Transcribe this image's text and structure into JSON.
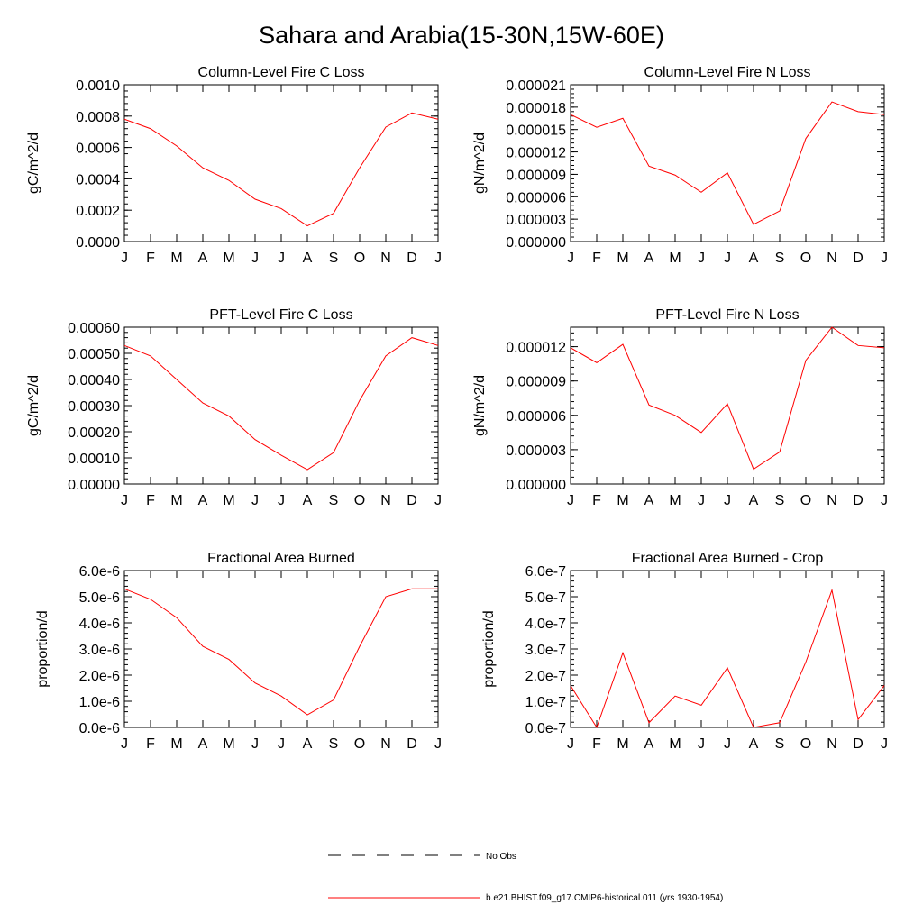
{
  "title": "Sahara and Arabia(15-30N,15W-60E)",
  "colors": {
    "series": "#ff0000",
    "axis": "#000000",
    "obs_line": "#000000"
  },
  "legend": [
    {
      "label": "No Obs",
      "style": "dashed",
      "color": "#000000"
    },
    {
      "label": "b.e21.BHIST.f09_g17.CMIP6-historical.011 (yrs 1930-1954)",
      "style": "solid",
      "color": "#ff0000"
    }
  ],
  "chart_data": [
    {
      "type": "line",
      "title": "Column-Level Fire C Loss",
      "ylabel": "gC/m^2/d",
      "categories": [
        "J",
        "F",
        "M",
        "A",
        "M",
        "J",
        "J",
        "A",
        "S",
        "O",
        "N",
        "D",
        "J"
      ],
      "ylim": [
        0,
        0.001
      ],
      "yticks": [
        "0.0000",
        "0.0002",
        "0.0004",
        "0.0006",
        "0.0008",
        "0.0010"
      ],
      "series": [
        {
          "values": [
            0.00078,
            0.00072,
            0.00061,
            0.00047,
            0.00039,
            0.00027,
            0.00021,
            0.0001,
            0.00018,
            0.00047,
            0.00073,
            0.00082,
            0.00078
          ]
        }
      ]
    },
    {
      "type": "line",
      "title": "Column-Level Fire N Loss",
      "ylabel": "gN/m^2/d",
      "categories": [
        "J",
        "F",
        "M",
        "A",
        "M",
        "J",
        "J",
        "A",
        "S",
        "O",
        "N",
        "D",
        "J"
      ],
      "ylim": [
        0,
        2.1e-05
      ],
      "yticks": [
        "0.000000",
        "0.000003",
        "0.000006",
        "0.000009",
        "0.000012",
        "0.000015",
        "0.000018",
        "0.000021"
      ],
      "series": [
        {
          "values": [
            1.7e-05,
            1.53e-05,
            1.65e-05,
            1.01e-05,
            8.9e-06,
            6.6e-06,
            9.2e-06,
            2.3e-06,
            4.1e-06,
            1.38e-05,
            1.87e-05,
            1.74e-05,
            1.7e-05
          ]
        }
      ]
    },
    {
      "type": "line",
      "title": "PFT-Level Fire C Loss",
      "ylabel": "gC/m^2/d",
      "categories": [
        "J",
        "F",
        "M",
        "A",
        "M",
        "J",
        "J",
        "A",
        "S",
        "O",
        "N",
        "D",
        "J"
      ],
      "ylim": [
        0,
        0.0006
      ],
      "yticks": [
        "0.00000",
        "0.00010",
        "0.00020",
        "0.00030",
        "0.00040",
        "0.00050",
        "0.00060"
      ],
      "series": [
        {
          "values": [
            0.00053,
            0.00049,
            0.0004,
            0.00031,
            0.00026,
            0.00017,
            0.00011,
            5.5e-05,
            0.00012,
            0.00032,
            0.00049,
            0.00056,
            0.00053
          ]
        }
      ]
    },
    {
      "type": "line",
      "title": "PFT-Level Fire N Loss",
      "ylabel": "gN/m^2/d",
      "categories": [
        "J",
        "F",
        "M",
        "A",
        "M",
        "J",
        "J",
        "A",
        "S",
        "O",
        "N",
        "D",
        "J"
      ],
      "ylim": [
        0,
        1.37e-05
      ],
      "yticks": [
        "0.000000",
        "0.000003",
        "0.000006",
        "0.000009",
        "0.000012"
      ],
      "yticks_values": [
        0,
        3e-06,
        6e-06,
        9e-06,
        1.2e-05
      ],
      "series": [
        {
          "values": [
            1.19e-05,
            1.06e-05,
            1.22e-05,
            6.9e-06,
            6e-06,
            4.5e-06,
            7e-06,
            1.3e-06,
            2.8e-06,
            1.08e-05,
            1.37e-05,
            1.21e-05,
            1.19e-05
          ]
        }
      ]
    },
    {
      "type": "line",
      "title": "Fractional Area Burned",
      "ylabel": "proportion/d",
      "categories": [
        "J",
        "F",
        "M",
        "A",
        "M",
        "J",
        "J",
        "A",
        "S",
        "O",
        "N",
        "D",
        "J"
      ],
      "ylim": [
        0,
        6e-06
      ],
      "yticks": [
        "0.0e-6",
        "1.0e-6",
        "2.0e-6",
        "3.0e-6",
        "4.0e-6",
        "5.0e-6",
        "6.0e-6"
      ],
      "series": [
        {
          "values": [
            5.3e-06,
            4.9e-06,
            4.2e-06,
            3.1e-06,
            2.6e-06,
            1.7e-06,
            1.2e-06,
            4.8e-07,
            1.05e-06,
            3.1e-06,
            5e-06,
            5.3e-06,
            5.3e-06
          ]
        }
      ]
    },
    {
      "type": "line",
      "title": "Fractional Area Burned - Crop",
      "ylabel": "proportion/d",
      "categories": [
        "J",
        "F",
        "M",
        "A",
        "M",
        "J",
        "J",
        "A",
        "S",
        "O",
        "N",
        "D",
        "J"
      ],
      "ylim": [
        0,
        6e-07
      ],
      "yticks": [
        "0.0e-7",
        "1.0e-7",
        "2.0e-7",
        "3.0e-7",
        "4.0e-7",
        "5.0e-7",
        "6.0e-7"
      ],
      "series": [
        {
          "values": [
            1.6e-07,
            0.0,
            2.85e-07,
            1.8e-08,
            1.2e-07,
            8.5e-08,
            2.28e-07,
            0.0,
            1.8e-08,
            2.5e-07,
            5.25e-07,
            3e-08,
            1.6e-07
          ]
        }
      ]
    }
  ]
}
